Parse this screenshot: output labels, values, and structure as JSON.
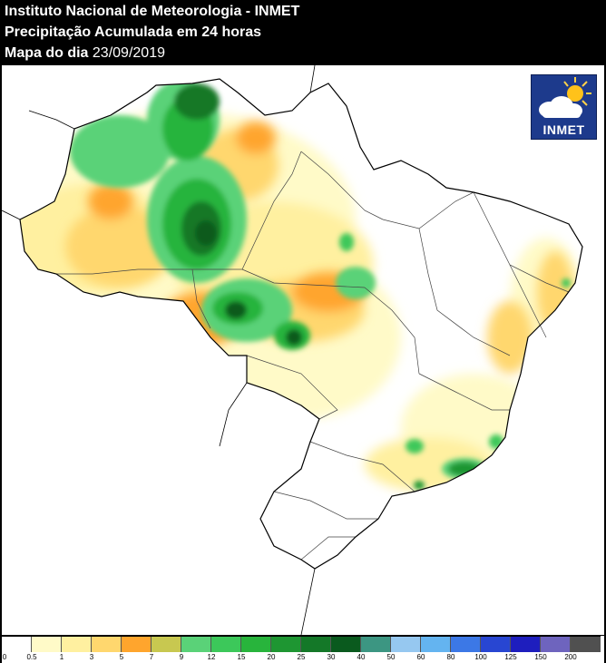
{
  "header": {
    "line1": "Instituto Nacional de Meteorologia - INMET",
    "line2": "Precipitação Acumulada em 24 horas",
    "line3_label": "Mapa do dia",
    "line3_date": "23/09/2019"
  },
  "logo": {
    "text": "INMET",
    "icon": "sun-cloud-icon"
  },
  "legend": {
    "colors": [
      "#ffffff",
      "#fffac8",
      "#fff0a0",
      "#ffd76e",
      "#ffa52d",
      "#c8c850",
      "#5ad278",
      "#3cc85a",
      "#28b43c",
      "#1e9632",
      "#147828",
      "#0a5a1e",
      "#3c9682",
      "#96c8f0",
      "#64b4f0",
      "#3c78e6",
      "#2846d2",
      "#1e1ebe",
      "#6e64be",
      "#505050"
    ],
    "ticks": [
      "0",
      "0.5",
      "1",
      "3",
      "5",
      "7",
      "9",
      "12",
      "15",
      "20",
      "25",
      "30",
      "40",
      "50",
      "60",
      "80",
      "100",
      "125",
      "150",
      "200"
    ]
  }
}
